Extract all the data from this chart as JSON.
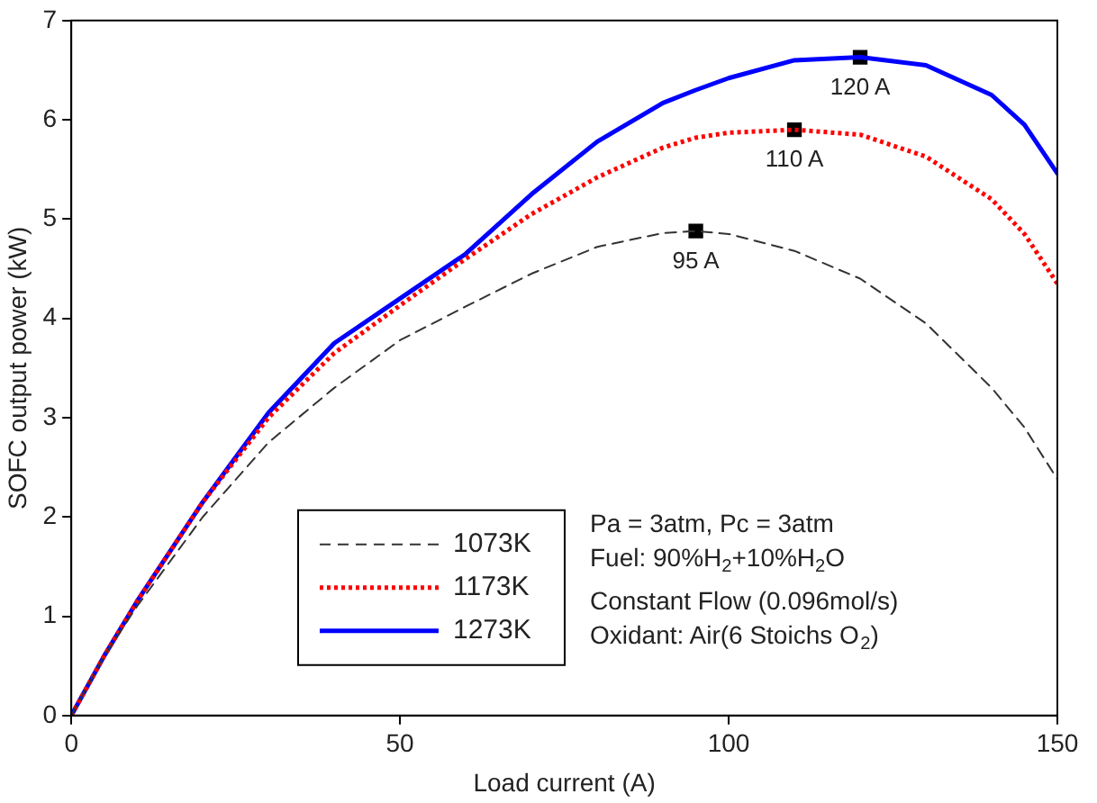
{
  "chart_data": {
    "type": "line",
    "xlabel": "Load current (A)",
    "ylabel": "SOFC output power (kW)",
    "x": [
      0,
      5,
      10,
      20,
      30,
      40,
      50,
      60,
      70,
      80,
      90,
      95,
      100,
      110,
      120,
      130,
      140,
      145,
      150
    ],
    "xlim": [
      0,
      150
    ],
    "xticks": [
      0,
      50,
      100,
      150
    ],
    "ylim": [
      0,
      7
    ],
    "yticks": [
      0,
      1,
      2,
      3,
      4,
      5,
      6,
      7
    ],
    "grid": false,
    "legend": "bottom",
    "marker": "none",
    "series": [
      {
        "name": "1073K",
        "color": "#333333",
        "line_style": "dashed",
        "values": [
          0,
          0.6,
          1.1,
          2.0,
          2.75,
          3.3,
          3.78,
          4.12,
          4.45,
          4.72,
          4.86,
          4.88,
          4.85,
          4.68,
          4.4,
          3.95,
          3.3,
          2.9,
          2.38
        ]
      },
      {
        "name": "1173K",
        "color": "#ff0000",
        "line_style": "dotted",
        "values": [
          0,
          0.6,
          1.15,
          2.15,
          3.0,
          3.65,
          4.13,
          4.6,
          5.05,
          5.42,
          5.72,
          5.82,
          5.87,
          5.9,
          5.85,
          5.63,
          5.2,
          4.85,
          4.35
        ]
      },
      {
        "name": "1273K",
        "color": "#0000ff",
        "line_style": "solid",
        "values": [
          0,
          0.6,
          1.15,
          2.15,
          3.05,
          3.75,
          4.2,
          4.65,
          5.25,
          5.78,
          6.17,
          6.3,
          6.42,
          6.6,
          6.63,
          6.55,
          6.25,
          5.95,
          5.46
        ]
      },
      {
        "type": "scatter",
        "color": "#000000",
        "marker": "square",
        "x": [
          95,
          110,
          120
        ],
        "values": [
          4.88,
          5.9,
          6.63
        ]
      }
    ],
    "annotations": [
      {
        "text": "95 A",
        "x": 95,
        "y": 4.88
      },
      {
        "text": "110 A",
        "x": 110,
        "y": 5.9
      },
      {
        "text": "120 A",
        "x": 120,
        "y": 6.63
      },
      "Pa = 3atm, Pc = 3atm",
      "Fuel: 90%H$_{2}$+10%H$_{2}$O",
      "Constant Flow (0.096mol/s)",
      "Oxidant: Air(6 Stoichs O$_{2}$)"
    ]
  }
}
